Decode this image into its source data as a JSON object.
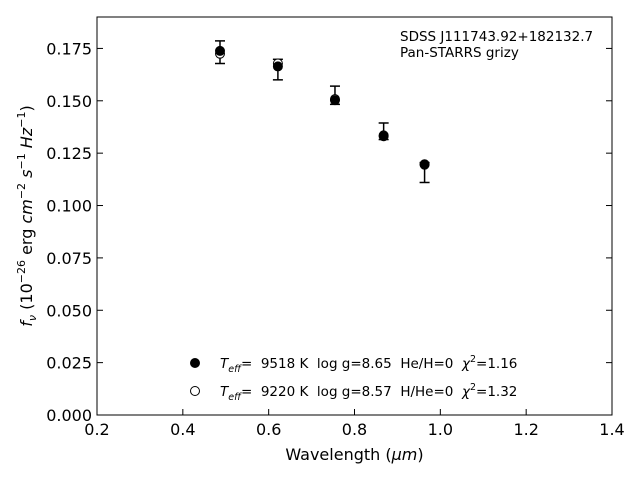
{
  "chart_data": {
    "type": "scatter",
    "xlabel_prefix": "Wavelength (",
    "xlabel_unit": "μm",
    "xlabel_suffix": ")",
    "ylabel": {
      "symbol": "f",
      "symbol_sub": "ν",
      "open": " (10",
      "exp": "−26",
      "mid1": " erg ",
      "cm": "cm",
      "cm_exp": "−2",
      "s": "s",
      "s_exp": "−1",
      "hz": "Hz",
      "hz_exp": "−1",
      "close": ")"
    },
    "xlim": [
      0.2,
      1.4
    ],
    "ylim": [
      0.0,
      0.19
    ],
    "xticks": [
      "0.2",
      "0.4",
      "0.6",
      "0.8",
      "1.0",
      "1.2",
      "1.4"
    ],
    "xtick_values": [
      0.2,
      0.4,
      0.6,
      0.8,
      1.0,
      1.2,
      1.4
    ],
    "yticks": [
      "0.000",
      "0.025",
      "0.050",
      "0.075",
      "0.100",
      "0.125",
      "0.150",
      "0.175"
    ],
    "ytick_values": [
      0.0,
      0.025,
      0.05,
      0.075,
      0.1,
      0.125,
      0.15,
      0.175
    ],
    "observed": {
      "x": [
        0.4866,
        0.6215,
        0.7545,
        0.8679,
        0.9633
      ],
      "y": [
        0.1732,
        0.1649,
        0.152,
        0.1348,
        0.116
      ],
      "yerr_low": [
        0.0054,
        0.0049,
        0.0037,
        0.0033,
        0.005
      ],
      "yerr_high": [
        0.0054,
        0.0049,
        0.005,
        0.0046,
        0.0045
      ]
    },
    "series": [
      {
        "marker": "filled",
        "x": [
          0.4866,
          0.6215,
          0.7545,
          0.8679,
          0.9633
        ],
        "y": [
          0.1738,
          0.1664,
          0.1503,
          0.1331,
          0.1195
        ]
      },
      {
        "marker": "open",
        "x": [
          0.4866,
          0.6215,
          0.7545,
          0.8679,
          0.9633
        ],
        "y": [
          0.1725,
          0.1678,
          0.1508,
          0.1335,
          0.1197
        ]
      }
    ],
    "annotation": {
      "line1": "SDSS J111743.92+182132.7",
      "line2": "Pan-STARRS grizy"
    },
    "legend": {
      "placement": "lower-center",
      "entries": [
        {
          "marker": "filled",
          "T": "T",
          "T_sub": "eff",
          "teff_text": "=  9518 K  log g=8.65  He/H=0  ",
          "chi": "χ",
          "chi_exp": "2",
          "chi_text": "=1.16"
        },
        {
          "marker": "open",
          "T": "T",
          "T_sub": "eff",
          "teff_text": "=  9220 K  log g=8.57  H/He=0  ",
          "chi": "χ",
          "chi_exp": "2",
          "chi_text": "=1.32"
        }
      ]
    }
  }
}
